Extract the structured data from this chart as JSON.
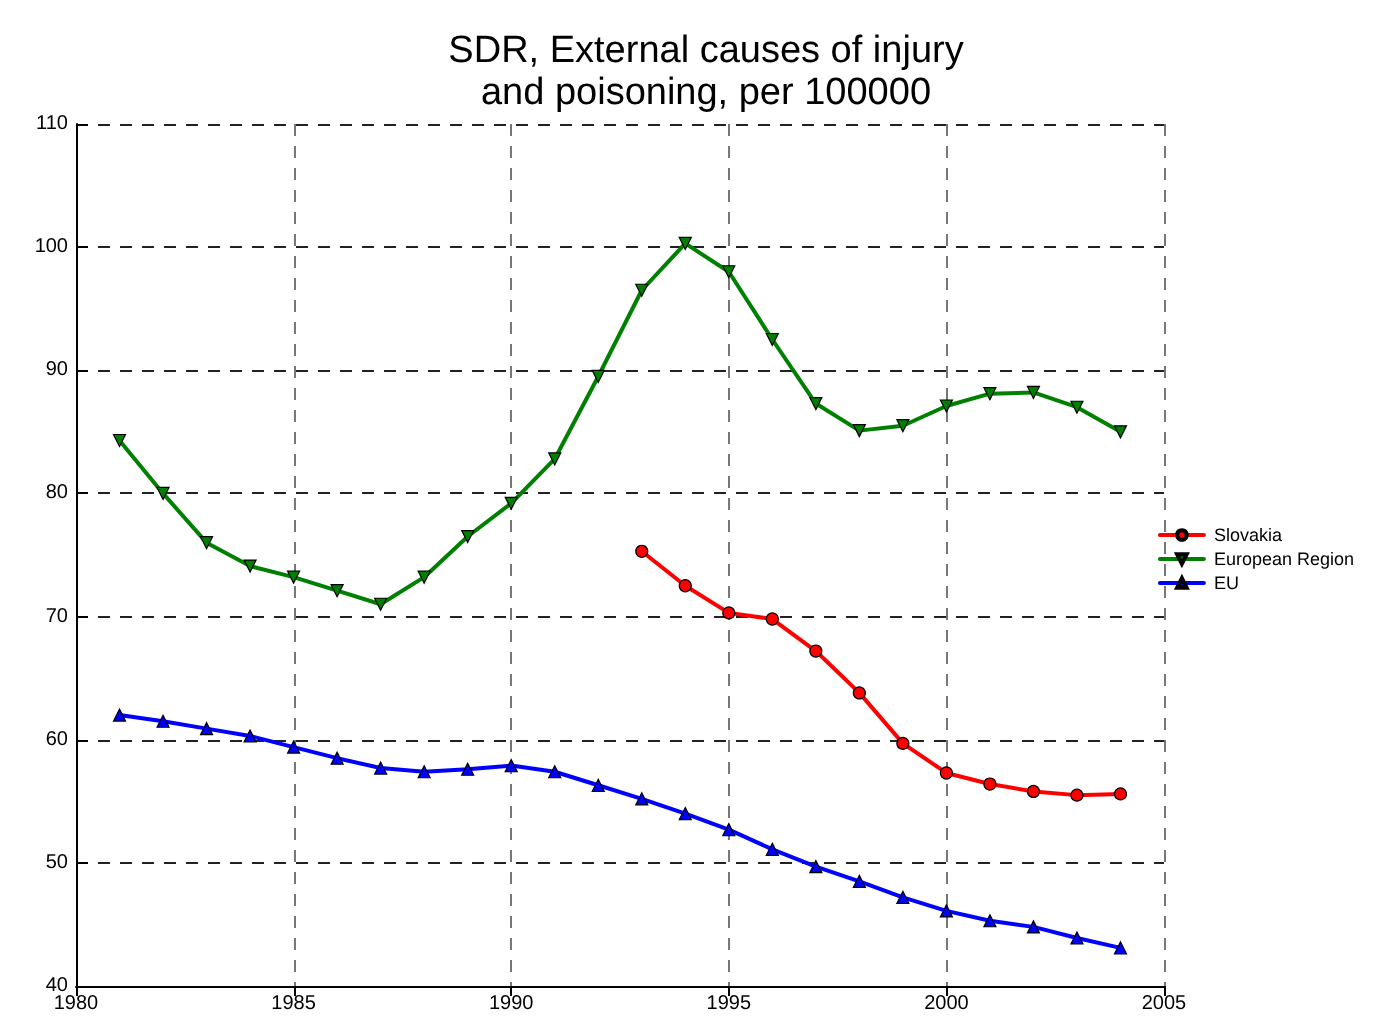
{
  "chart_data": {
    "type": "line",
    "title": "SDR, External causes of injury\nand poisoning, per 100000",
    "xlim": [
      1980,
      2005
    ],
    "xticks": [
      1980,
      1985,
      1990,
      1995,
      2000,
      2005
    ],
    "ylim": [
      40,
      110
    ],
    "yticks": [
      40,
      50,
      60,
      70,
      80,
      90,
      100,
      110
    ],
    "grid": true,
    "legend": "right",
    "line_style": "solid",
    "series": [
      {
        "name": "Slovakia",
        "color": "#ff0000",
        "marker": "circle",
        "x": [
          1993,
          1994,
          1995,
          1996,
          1997,
          1998,
          1999,
          2000,
          2001,
          2002,
          2003,
          2004
        ],
        "values": [
          75.3,
          72.5,
          70.3,
          69.8,
          67.2,
          63.8,
          59.7,
          57.3,
          56.4,
          55.8,
          55.5,
          55.6
        ]
      },
      {
        "name": "European Region",
        "color": "#008000",
        "marker": "triangle-down",
        "x": [
          1981,
          1982,
          1983,
          1984,
          1985,
          1986,
          1987,
          1988,
          1989,
          1990,
          1991,
          1992,
          1993,
          1994,
          1995,
          1996,
          1997,
          1998,
          1999,
          2000,
          2001,
          2002,
          2003,
          2004
        ],
        "values": [
          84.3,
          80.0,
          76.0,
          74.1,
          73.2,
          72.1,
          71.0,
          73.2,
          76.5,
          79.2,
          82.8,
          89.5,
          96.5,
          100.3,
          98.0,
          92.5,
          87.3,
          85.1,
          85.5,
          87.1,
          88.1,
          88.2,
          87.0,
          85.0
        ]
      },
      {
        "name": "EU",
        "color": "#0000ff",
        "marker": "triangle",
        "x": [
          1981,
          1982,
          1983,
          1984,
          1985,
          1986,
          1987,
          1988,
          1989,
          1990,
          1991,
          1992,
          1993,
          1994,
          1995,
          1996,
          1997,
          1998,
          1999,
          2000,
          2001,
          2002,
          2003,
          2004
        ],
        "values": [
          62.0,
          61.5,
          60.9,
          60.3,
          59.4,
          58.5,
          57.7,
          57.4,
          57.6,
          57.9,
          57.4,
          56.3,
          55.2,
          54.0,
          52.7,
          51.1,
          49.7,
          48.5,
          47.2,
          46.1,
          45.3,
          44.8,
          43.9,
          43.1
        ]
      }
    ]
  }
}
